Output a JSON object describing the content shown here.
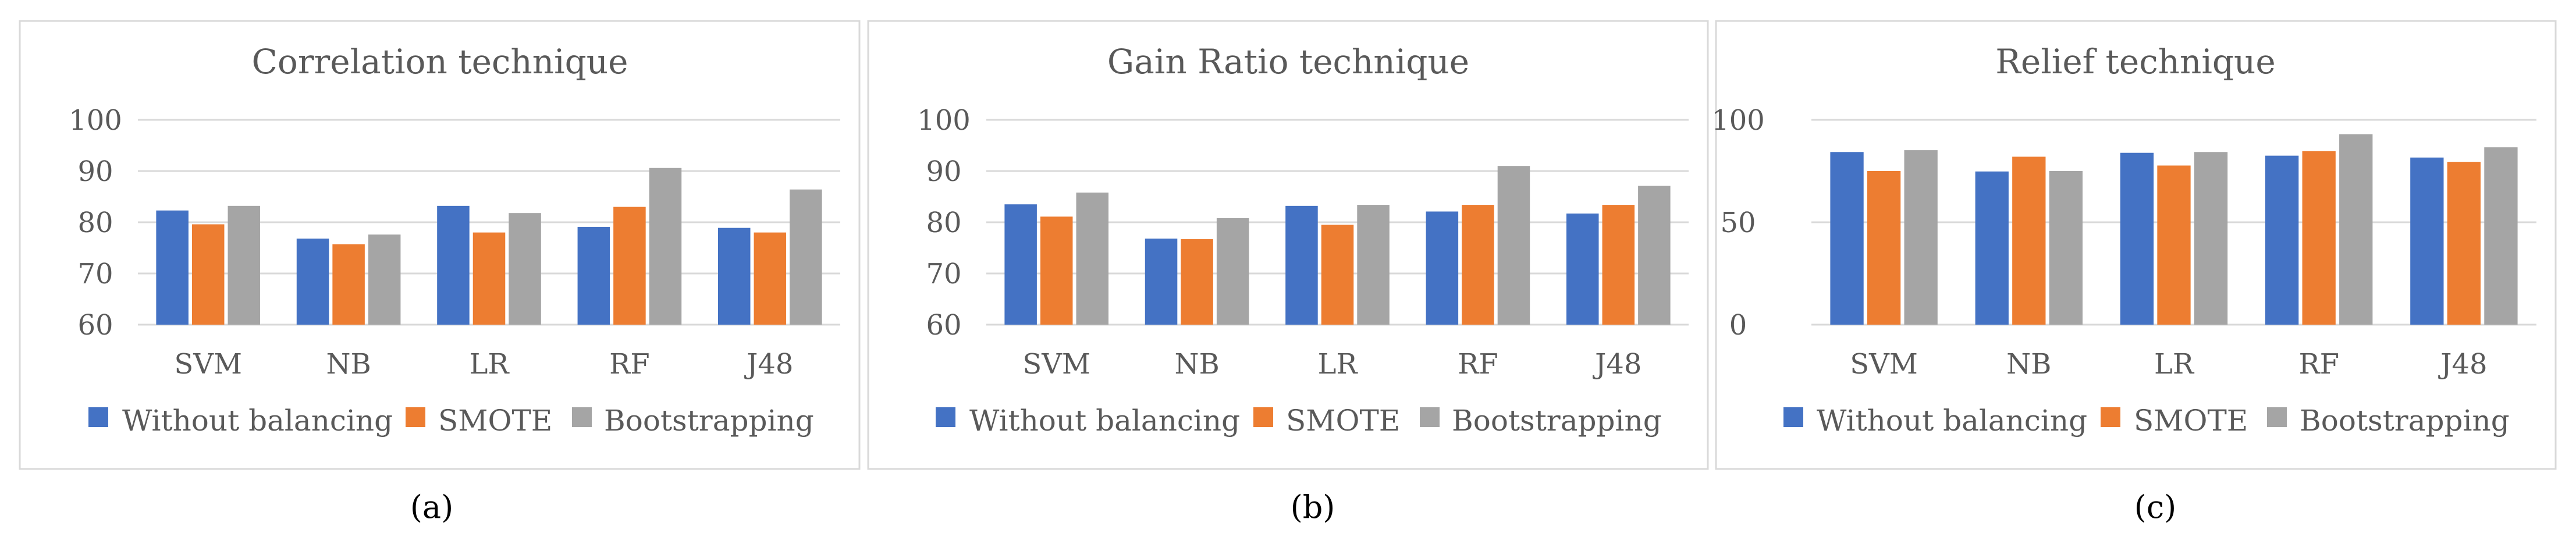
{
  "colors": {
    "without_balancing": "#4472C4",
    "smote": "#ED7D31",
    "bootstrapping": "#A5A5A5",
    "gridline": "#D9D9D9",
    "frame": "#D9D9D9",
    "text": "#595959"
  },
  "chart_data": [
    {
      "type": "bar",
      "title": "Correlation technique",
      "caption": "(a)",
      "categories": [
        "SVM",
        "NB",
        "LR",
        "RF",
        "J48"
      ],
      "series": [
        {
          "name": "Without balancing",
          "values": [
            82.3,
            76.8,
            83.2,
            79.1,
            78.9
          ]
        },
        {
          "name": "SMOTE",
          "values": [
            79.6,
            75.7,
            78.0,
            83.0,
            78.0
          ]
        },
        {
          "name": "Bootstrapping",
          "values": [
            83.2,
            77.6,
            81.8,
            90.6,
            86.4
          ]
        }
      ],
      "ylim": [
        60,
        100
      ],
      "yticks": [
        60,
        70,
        80,
        90,
        100
      ],
      "ytick_labels": [
        "60",
        "70",
        "80",
        "90",
        "100"
      ],
      "xlabel": "",
      "ylabel": "",
      "legend": "bottom",
      "grid": true
    },
    {
      "type": "bar",
      "title": "Gain Ratio technique",
      "caption": "(b)",
      "categories": [
        "SVM",
        "NB",
        "LR",
        "RF",
        "J48"
      ],
      "series": [
        {
          "name": "Without balancing",
          "values": [
            83.5,
            76.8,
            83.2,
            82.1,
            81.7
          ]
        },
        {
          "name": "SMOTE",
          "values": [
            81.1,
            76.7,
            79.5,
            83.4,
            83.4
          ]
        },
        {
          "name": "Bootstrapping",
          "values": [
            85.8,
            80.8,
            83.4,
            91.0,
            87.1
          ]
        }
      ],
      "ylim": [
        60,
        100
      ],
      "yticks": [
        60,
        70,
        80,
        90,
        100
      ],
      "ytick_labels": [
        "60",
        "70",
        "80",
        "90",
        "100"
      ],
      "xlabel": "",
      "ylabel": "",
      "legend": "bottom",
      "grid": true
    },
    {
      "type": "bar",
      "title": "Relief technique",
      "caption": "(c)",
      "categories": [
        "SVM",
        "NB",
        "LR",
        "RF",
        "J48"
      ],
      "series": [
        {
          "name": "Without balancing",
          "values": [
            84.3,
            74.8,
            83.9,
            82.5,
            81.6
          ]
        },
        {
          "name": "SMOTE",
          "values": [
            75.0,
            82.0,
            77.7,
            84.7,
            79.5
          ]
        },
        {
          "name": "Bootstrapping",
          "values": [
            85.2,
            75.0,
            84.3,
            93.0,
            86.6
          ]
        }
      ],
      "ylim": [
        0,
        100
      ],
      "yticks": [
        0,
        50,
        100
      ],
      "ytick_labels": [
        "0",
        "50",
        "100"
      ],
      "xlabel": "",
      "ylabel": "",
      "legend": "bottom",
      "grid": true
    }
  ]
}
